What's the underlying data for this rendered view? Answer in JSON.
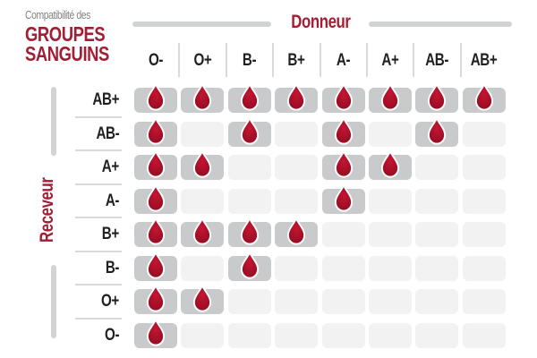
{
  "title": {
    "subtitle": "Compatibilité des",
    "main_line1": "GROUPES",
    "main_line2": "SANGUINS"
  },
  "axes": {
    "donor_label": "Donneur",
    "receiver_label": "Receveur"
  },
  "chart_data": {
    "type": "heatmap",
    "title": "Compatibilité des groupes sanguins",
    "x_axis_label": "Donneur",
    "y_axis_label": "Receveur",
    "donors": [
      "O-",
      "O+",
      "B-",
      "B+",
      "A-",
      "A+",
      "AB-",
      "AB+"
    ],
    "receivers": [
      "AB+",
      "AB-",
      "A+",
      "A-",
      "B+",
      "B-",
      "O+",
      "O-"
    ],
    "matrix": [
      [
        1,
        1,
        1,
        1,
        1,
        1,
        1,
        1
      ],
      [
        1,
        0,
        1,
        0,
        1,
        0,
        1,
        0
      ],
      [
        1,
        1,
        0,
        0,
        1,
        1,
        0,
        0
      ],
      [
        1,
        0,
        0,
        0,
        1,
        0,
        0,
        0
      ],
      [
        1,
        1,
        1,
        1,
        0,
        0,
        0,
        0
      ],
      [
        1,
        0,
        1,
        0,
        0,
        0,
        0,
        0
      ],
      [
        1,
        1,
        0,
        0,
        0,
        0,
        0,
        0
      ],
      [
        1,
        0,
        0,
        0,
        0,
        0,
        0,
        0
      ]
    ],
    "cell_marker": "blood-drop-icon",
    "legend": "drop = compatible, blank = incompatible"
  },
  "colors": {
    "accent_red": "#A21E34",
    "drop_red_light": "#C51532",
    "drop_red_dark": "#8F0C21",
    "axis_gray": "#D1D3D4",
    "cell_filled": "#C9CACC",
    "cell_empty": "#F2F2F2",
    "label_dark": "#231F20",
    "subtitle_gray": "#808285"
  }
}
